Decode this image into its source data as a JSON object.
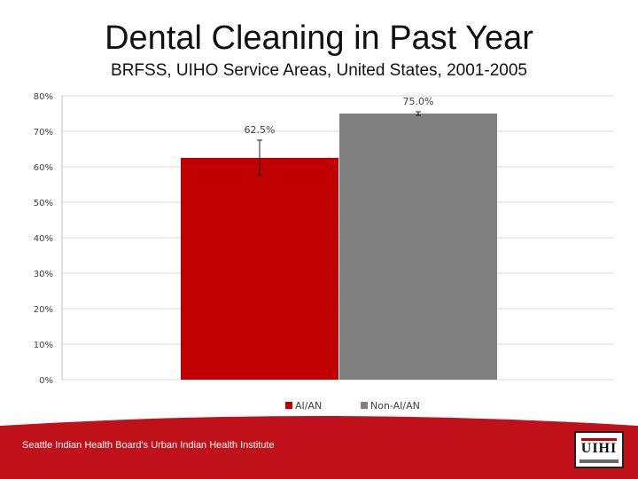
{
  "slide": {
    "title": "Dental Cleaning in Past Year",
    "subtitle": "BRFSS, UIHO Service Areas, United States, 2001-2005",
    "footer": "Seattle Indian Health Board's Urban Indian Health Institute",
    "logo_text": "UIHI"
  },
  "colors": {
    "ai_an": "#c00000",
    "non_ai_an": "#808080",
    "footer_red": "#c0111b",
    "grid": "#d9d9d9"
  },
  "chart_data": {
    "type": "bar",
    "categories": [
      "AI/AN",
      "Non-AI/AN"
    ],
    "values": [
      62.5,
      75.0
    ],
    "data_labels": [
      "62.5%",
      "75.0%"
    ],
    "error_bars": [
      [
        57.5,
        67.5
      ],
      [
        74.5,
        75.5
      ]
    ],
    "ylim": [
      0,
      80
    ],
    "y_ticks": [
      0,
      10,
      20,
      30,
      40,
      50,
      60,
      70,
      80
    ],
    "y_tick_labels": [
      "0%",
      "10%",
      "20%",
      "30%",
      "40%",
      "50%",
      "60%",
      "70%",
      "80%"
    ],
    "grid": true,
    "legend": [
      "AI/AN",
      "Non-AI/AN"
    ],
    "legend_position": "bottom",
    "bar_colors": [
      "#c00000",
      "#808080"
    ]
  }
}
